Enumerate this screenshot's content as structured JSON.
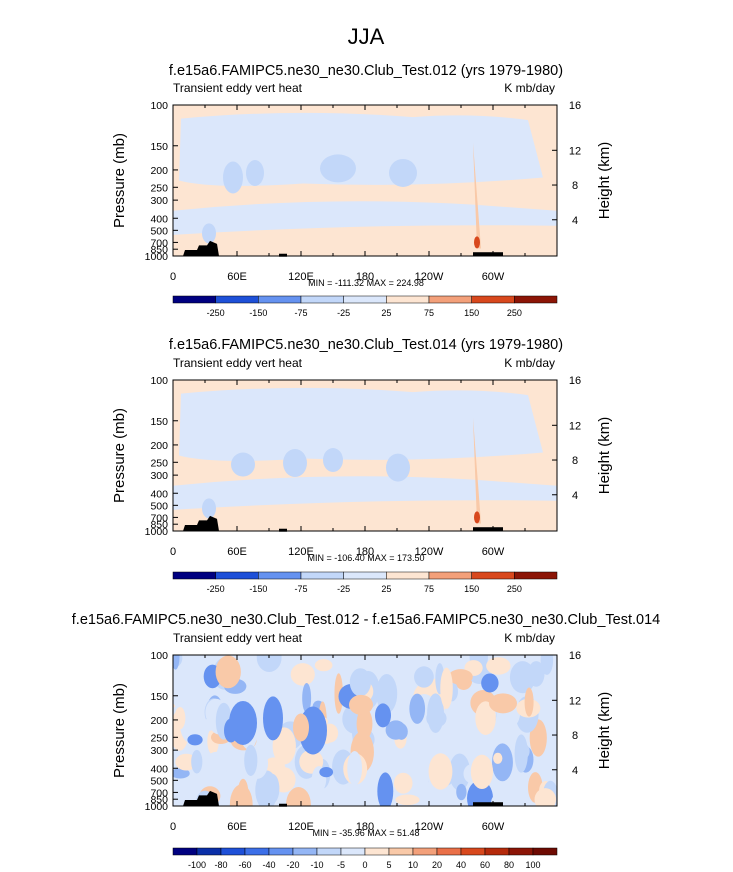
{
  "page": {
    "title": "JJA"
  },
  "chart_data": [
    {
      "type": "heatmap",
      "title": "f.e15a6.FAMIPC5.ne30_ne30.Club_Test.012 (yrs 1979-1980)",
      "left_string": "Transient eddy vert heat",
      "right_string": "K mb/day",
      "ylabel": "Pressure (mb)",
      "ylabel_right": "Height (km)",
      "x_ticks": [
        "0",
        "60E",
        "120E",
        "180",
        "120W",
        "60W"
      ],
      "y_ticks": [
        "100",
        "150",
        "200",
        "250",
        "300",
        "400",
        "500",
        "700",
        "850",
        "1000"
      ],
      "y2_ticks": [
        "16",
        "12",
        "8",
        "4"
      ],
      "stats": "MIN = -111.32  MAX = 224.98",
      "levels": [
        "-250",
        "-150",
        "-75",
        "-25",
        "25",
        "75",
        "150",
        "250"
      ]
    },
    {
      "type": "heatmap",
      "title": "f.e15a6.FAMIPC5.ne30_ne30.Club_Test.014 (yrs 1979-1980)",
      "left_string": "Transient eddy vert heat",
      "right_string": "K mb/day",
      "ylabel": "Pressure (mb)",
      "ylabel_right": "Height (km)",
      "x_ticks": [
        "0",
        "60E",
        "120E",
        "180",
        "120W",
        "60W"
      ],
      "y_ticks": [
        "100",
        "150",
        "200",
        "250",
        "300",
        "400",
        "500",
        "700",
        "850",
        "1000"
      ],
      "y2_ticks": [
        "16",
        "12",
        "8",
        "4"
      ],
      "stats": "MIN = -106.40  MAX = 173.50",
      "levels": [
        "-250",
        "-150",
        "-75",
        "-25",
        "25",
        "75",
        "150",
        "250"
      ]
    },
    {
      "type": "heatmap",
      "title": "f.e15a6.FAMIPC5.ne30_ne30.Club_Test.012 - f.e15a6.FAMIPC5.ne30_ne30.Club_Test.014",
      "left_string": "Transient eddy vert heat",
      "right_string": "K mb/day",
      "ylabel": "Pressure (mb)",
      "ylabel_right": "Height (km)",
      "x_ticks": [
        "0",
        "60E",
        "120E",
        "180",
        "120W",
        "60W"
      ],
      "y_ticks": [
        "100",
        "150",
        "200",
        "250",
        "300",
        "400",
        "500",
        "700",
        "850",
        "1000"
      ],
      "y2_ticks": [
        "16",
        "12",
        "8",
        "4"
      ],
      "stats": "MIN = -35.96  MAX = 51.48",
      "levels": [
        "-100",
        "-80",
        "-60",
        "-40",
        "-20",
        "-10",
        "-5",
        "0",
        "5",
        "10",
        "20",
        "40",
        "60",
        "80",
        "100"
      ]
    }
  ],
  "colors": {
    "palette": [
      "#000080",
      "#0a2fa8",
      "#1e50d8",
      "#3c6fe8",
      "#6592f0",
      "#94b6f5",
      "#c2d7f9",
      "#dbe7fb",
      "#fde5d2",
      "#f9c9a8",
      "#f3a07a",
      "#ea7048",
      "#d8481d",
      "#b52a0b",
      "#8c1506",
      "#6e0a02"
    ],
    "mountain": "#000000"
  }
}
